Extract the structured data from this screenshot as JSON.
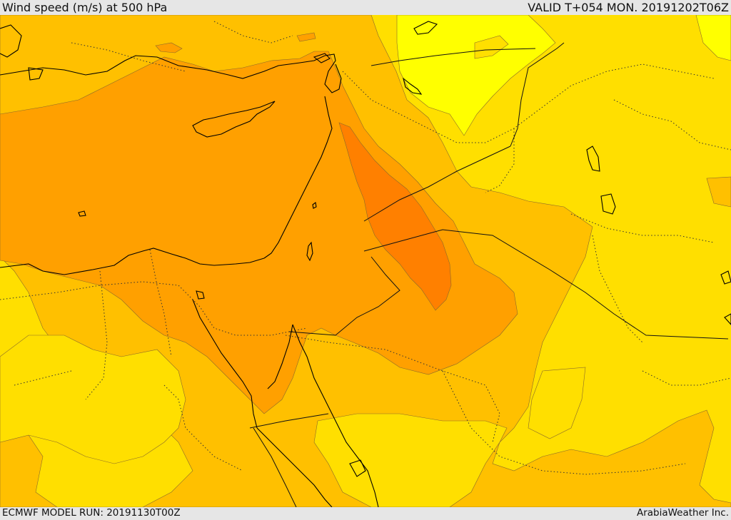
{
  "header": {
    "title": "Wind speed (m/s) at 500 hPa",
    "valid": "VALID T+054 MON. 20191202T06Z"
  },
  "footer": {
    "model_run": "ECMWF MODEL RUN: 20191130T00Z",
    "credit": "ArabiaWeather Inc."
  },
  "map": {
    "variable": "wind speed",
    "level": "500 hPa",
    "region": "Eastern Mediterranean / Middle East",
    "colors": {
      "band_lowest": "#FFFF00",
      "band_low": "#FFDF00",
      "band_mid": "#FFC000",
      "band_high": "#FFA000",
      "band_highest": "#FF8000",
      "coastline": "#000000",
      "border": "#222222"
    }
  }
}
